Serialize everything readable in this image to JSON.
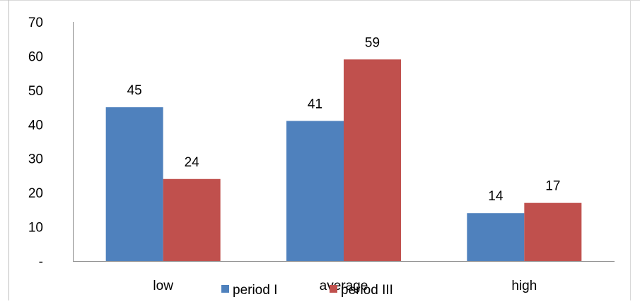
{
  "chart_data": {
    "type": "bar",
    "categories": [
      "low",
      "average",
      "high"
    ],
    "series": [
      {
        "name": "period I",
        "values": [
          45,
          41,
          14
        ],
        "color": "#4F81BD"
      },
      {
        "name": "period III",
        "values": [
          24,
          59,
          17
        ],
        "color": "#C0504D"
      }
    ],
    "title": "",
    "xlabel": "",
    "ylabel": "",
    "ylim": [
      0,
      70
    ],
    "yticks": [
      {
        "value": 0,
        "label": "-"
      },
      {
        "value": 10,
        "label": "10"
      },
      {
        "value": 20,
        "label": "20"
      },
      {
        "value": 30,
        "label": "30"
      },
      {
        "value": 40,
        "label": "40"
      },
      {
        "value": 50,
        "label": "50"
      },
      {
        "value": 60,
        "label": "60"
      },
      {
        "value": 70,
        "label": "70"
      }
    ],
    "grid": false,
    "data_labels": true,
    "legend_position": "bottom"
  }
}
